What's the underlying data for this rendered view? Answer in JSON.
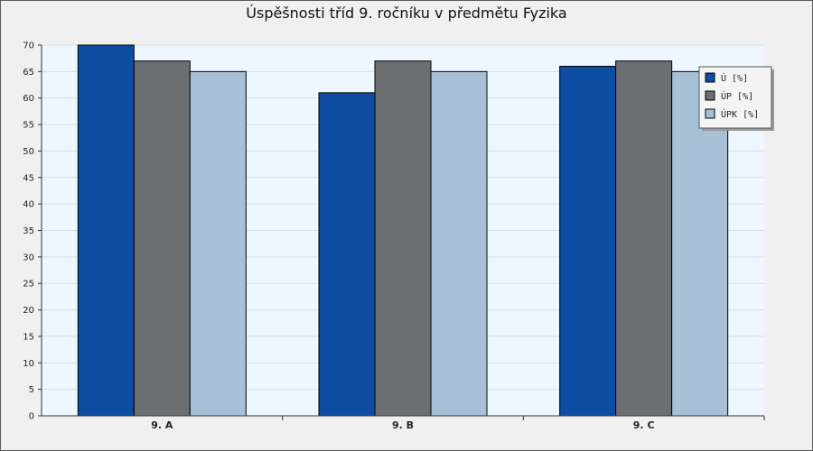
{
  "chart_data": {
    "type": "bar",
    "title": "Úspěšnosti tříd 9. ročníku v předmětu Fyzika",
    "xlabel": "",
    "ylabel": "",
    "categories": [
      "9. A",
      "9. B",
      "9. C"
    ],
    "series": [
      {
        "name": "Ú [%]",
        "values": [
          70,
          61,
          66
        ],
        "color": "#0d4ea3"
      },
      {
        "name": "ÚP [%]",
        "values": [
          67,
          67,
          67
        ],
        "color": "#6d6e72"
      },
      {
        "name": "ÚPK [%]",
        "values": [
          65,
          65,
          65
        ],
        "color": "#a8c0d6"
      }
    ],
    "ylim": [
      0,
      70
    ],
    "yticks": [
      0,
      5,
      10,
      15,
      20,
      25,
      30,
      35,
      40,
      45,
      50,
      55,
      60,
      65,
      70
    ],
    "grid": true,
    "legend_position": "top-right",
    "plot_background": "#eef6ff"
  }
}
